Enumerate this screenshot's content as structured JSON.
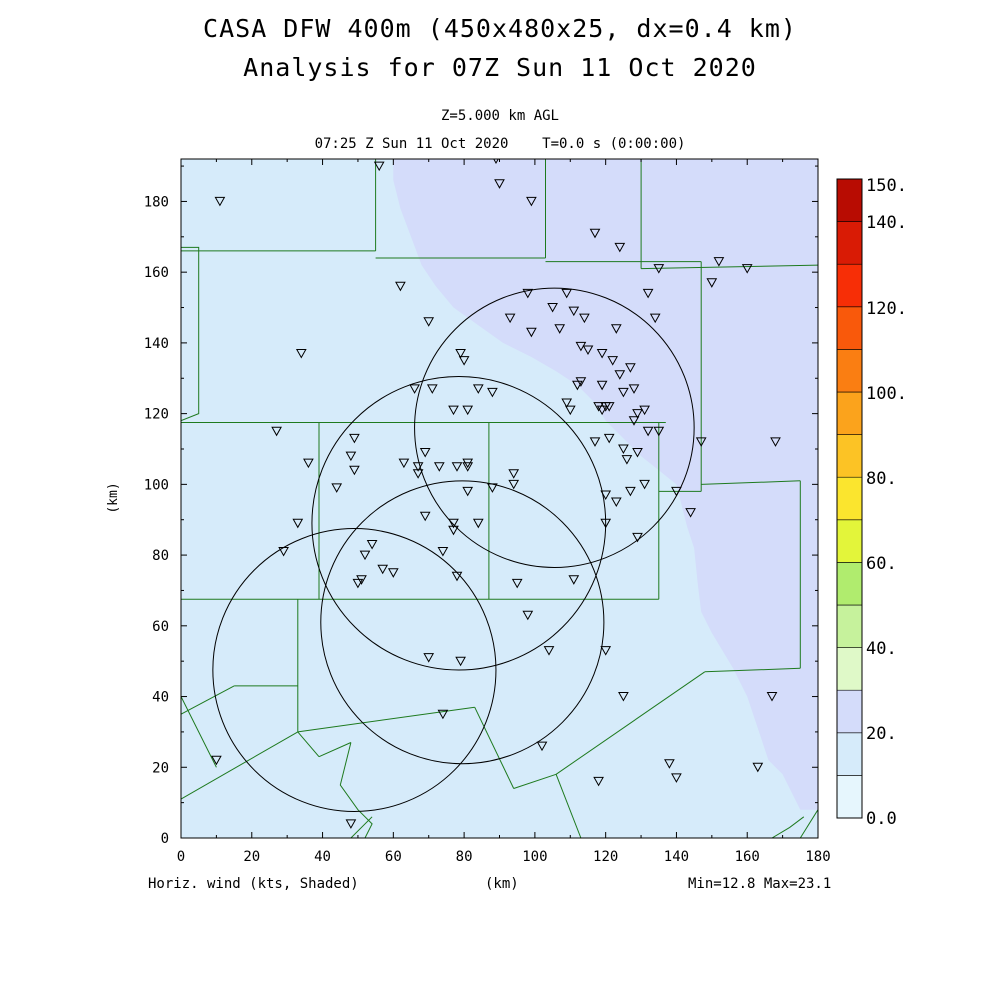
{
  "title_line1": "CASA DFW 400m (450x480x25, dx=0.4 km)",
  "title_line2": "Analysis for 07Z Sun 11 Oct 2020",
  "level_label": "Z=5.000 km AGL",
  "time_label": "07:25 Z Sun 11 Oct 2020    T=0.0 s (0:00:00)",
  "footer_left": "Horiz. wind (kts, Shaded)",
  "footer_center": "(km)",
  "footer_right": "Min=12.8 Max=23.1",
  "chart_data": {
    "type": "map",
    "xlabel": "(km)",
    "ylabel": "(km)",
    "xlim": [
      0,
      180
    ],
    "ylim": [
      0,
      192
    ],
    "x_ticks": [
      0,
      20,
      40,
      60,
      80,
      100,
      120,
      140,
      160,
      180
    ],
    "y_ticks": [
      0,
      20,
      40,
      60,
      80,
      100,
      120,
      140,
      160,
      180
    ],
    "shaded_field": "Horiz. wind (kts)",
    "field_min": 12.8,
    "field_max": 23.1,
    "colorbar": {
      "labels": [
        "0.0",
        "20.",
        "40.",
        "60.",
        "80.",
        "100.",
        "120.",
        "140.",
        "150."
      ],
      "bins": [
        {
          "lo": 0,
          "hi": 10,
          "color": "#e6f6fd"
        },
        {
          "lo": 10,
          "hi": 20,
          "color": "#d6ebfa"
        },
        {
          "lo": 20,
          "hi": 30,
          "color": "#d4dcfa"
        },
        {
          "lo": 30,
          "hi": 40,
          "color": "#dff9c8"
        },
        {
          "lo": 40,
          "hi": 50,
          "color": "#c6f29c"
        },
        {
          "lo": 50,
          "hi": 60,
          "color": "#b0ec6e"
        },
        {
          "lo": 60,
          "hi": 70,
          "color": "#e3f53a"
        },
        {
          "lo": 70,
          "hi": 80,
          "color": "#fbe52e"
        },
        {
          "lo": 80,
          "hi": 90,
          "color": "#fcc325"
        },
        {
          "lo": 90,
          "hi": 100,
          "color": "#fba31c"
        },
        {
          "lo": 100,
          "hi": 110,
          "color": "#fa7e12"
        },
        {
          "lo": 110,
          "hi": 120,
          "color": "#f9590b"
        },
        {
          "lo": 120,
          "hi": 130,
          "color": "#f72e06"
        },
        {
          "lo": 130,
          "hi": 140,
          "color": "#d91b05"
        },
        {
          "lo": 140,
          "hi": 150,
          "color": "#b80c02"
        }
      ]
    },
    "field_regions": [
      {
        "level": "20-30",
        "color": "#d4dcfa",
        "points": [
          [
            60,
            192
          ],
          [
            180,
            192
          ],
          [
            180,
            8
          ],
          [
            175,
            8
          ],
          [
            170,
            18
          ],
          [
            166,
            22
          ],
          [
            160,
            40
          ],
          [
            156,
            48
          ],
          [
            150,
            58
          ],
          [
            147,
            64
          ],
          [
            146,
            72
          ],
          [
            145,
            82
          ],
          [
            143,
            88
          ],
          [
            140,
            100
          ],
          [
            135,
            104
          ],
          [
            130,
            108
          ],
          [
            125,
            113
          ],
          [
            120,
            118
          ],
          [
            117,
            123
          ],
          [
            112,
            128
          ],
          [
            106,
            132
          ],
          [
            99,
            136
          ],
          [
            91,
            140
          ],
          [
            84,
            145
          ],
          [
            77,
            150
          ],
          [
            72,
            156
          ],
          [
            68,
            162
          ],
          [
            65,
            170
          ],
          [
            62,
            178
          ],
          [
            60,
            186
          ]
        ]
      }
    ],
    "radar_range_circles_km": [
      {
        "cx": 105.5,
        "cy": 116,
        "r": 39.5
      },
      {
        "cx": 78.5,
        "cy": 89,
        "r": 41.5
      },
      {
        "cx": 79.5,
        "cy": 61,
        "r": 40
      },
      {
        "cx": 49,
        "cy": 47.5,
        "r": 40
      }
    ],
    "county_lines": [
      [
        [
          0,
          117.5
        ],
        [
          137,
          117.5
        ]
      ],
      [
        [
          0,
          166
        ],
        [
          55,
          166
        ]
      ],
      [
        [
          55,
          192
        ],
        [
          55,
          166
        ]
      ],
      [
        [
          55,
          164
        ],
        [
          103,
          164
        ]
      ],
      [
        [
          103,
          192
        ],
        [
          103,
          164
        ]
      ],
      [
        [
          103,
          163
        ],
        [
          147,
          163
        ]
      ],
      [
        [
          147,
          163
        ],
        [
          147,
          98
        ]
      ],
      [
        [
          130,
          192
        ],
        [
          130,
          161
        ]
      ],
      [
        [
          130,
          161
        ],
        [
          180,
          162
        ]
      ],
      [
        [
          39,
          117.5
        ],
        [
          39,
          67.5
        ]
      ],
      [
        [
          0,
          67.5
        ],
        [
          135,
          67.5
        ]
      ],
      [
        [
          87,
          117.5
        ],
        [
          87,
          67.5
        ]
      ],
      [
        [
          135,
          117.5
        ],
        [
          135,
          67.5
        ]
      ],
      [
        [
          135,
          98
        ],
        [
          147,
          98
        ]
      ],
      [
        [
          147,
          100
        ],
        [
          175,
          101
        ]
      ],
      [
        [
          175,
          101
        ],
        [
          175,
          48
        ]
      ],
      [
        [
          148,
          47
        ],
        [
          175,
          48
        ]
      ],
      [
        [
          33,
          67.5
        ],
        [
          33,
          30
        ]
      ],
      [
        [
          33,
          30
        ],
        [
          83,
          37
        ]
      ],
      [
        [
          15,
          43
        ],
        [
          33,
          43
        ]
      ],
      [
        [
          0,
          35
        ],
        [
          15,
          43
        ]
      ],
      [
        [
          0,
          11
        ],
        [
          33,
          30
        ]
      ],
      [
        [
          33,
          30
        ],
        [
          39,
          23
        ]
      ],
      [
        [
          39,
          23
        ],
        [
          48,
          27
        ]
      ],
      [
        [
          83,
          37
        ],
        [
          94,
          14
        ]
      ],
      [
        [
          94,
          14
        ],
        [
          106,
          18
        ]
      ],
      [
        [
          106,
          18
        ],
        [
          113,
          0
        ]
      ],
      [
        [
          106,
          18
        ],
        [
          148,
          47
        ]
      ],
      [
        [
          0,
          40
        ],
        [
          10,
          20
        ]
      ],
      [
        [
          48,
          27
        ],
        [
          45,
          15
        ],
        [
          50,
          8
        ],
        [
          54,
          4
        ],
        [
          52,
          0
        ]
      ],
      [
        [
          176,
          6
        ],
        [
          172,
          3
        ],
        [
          167,
          0
        ]
      ],
      [
        [
          180,
          8
        ],
        [
          175,
          0
        ]
      ],
      [
        [
          48,
          0
        ],
        [
          54,
          6
        ]
      ],
      [
        [
          0,
          167
        ],
        [
          5,
          167
        ],
        [
          5,
          120
        ],
        [
          0,
          118
        ]
      ]
    ],
    "station_markers_km": [
      [
        11,
        180
      ],
      [
        56,
        190
      ],
      [
        89,
        192
      ],
      [
        90,
        185
      ],
      [
        99,
        180
      ],
      [
        117,
        171
      ],
      [
        124,
        167
      ],
      [
        135,
        161
      ],
      [
        152,
        163
      ],
      [
        160,
        161
      ],
      [
        150,
        157
      ],
      [
        62,
        156
      ],
      [
        98,
        154
      ],
      [
        109,
        154
      ],
      [
        111,
        149
      ],
      [
        105,
        150
      ],
      [
        99,
        143
      ],
      [
        114,
        147
      ],
      [
        107,
        144
      ],
      [
        93,
        147
      ],
      [
        70,
        146
      ],
      [
        123,
        144
      ],
      [
        113,
        139
      ],
      [
        115,
        138
      ],
      [
        119,
        137
      ],
      [
        122,
        135
      ],
      [
        34,
        137
      ],
      [
        79,
        137
      ],
      [
        80,
        135
      ],
      [
        127,
        133
      ],
      [
        124,
        131
      ],
      [
        134,
        147
      ],
      [
        132,
        154
      ],
      [
        113,
        129
      ],
      [
        112,
        128
      ],
      [
        119,
        128
      ],
      [
        66,
        127
      ],
      [
        71,
        127
      ],
      [
        84,
        127
      ],
      [
        88,
        126
      ],
      [
        125,
        126
      ],
      [
        128,
        127
      ],
      [
        77,
        121
      ],
      [
        81,
        121
      ],
      [
        109,
        123
      ],
      [
        110,
        121
      ],
      [
        118,
        122
      ],
      [
        119,
        121
      ],
      [
        120,
        122
      ],
      [
        121,
        122
      ],
      [
        129,
        120
      ],
      [
        131,
        121
      ],
      [
        128,
        118
      ],
      [
        132,
        115
      ],
      [
        135,
        115
      ],
      [
        27,
        115
      ],
      [
        49,
        113
      ],
      [
        117,
        112
      ],
      [
        121,
        113
      ],
      [
        125,
        110
      ],
      [
        147,
        112
      ],
      [
        168,
        112
      ],
      [
        69,
        109
      ],
      [
        48,
        108
      ],
      [
        126,
        107
      ],
      [
        129,
        109
      ],
      [
        36,
        106
      ],
      [
        63,
        106
      ],
      [
        67,
        105
      ],
      [
        73,
        105
      ],
      [
        78,
        105
      ],
      [
        81,
        106
      ],
      [
        81,
        105
      ],
      [
        67,
        103
      ],
      [
        49,
        104
      ],
      [
        94,
        103
      ],
      [
        44,
        99
      ],
      [
        88,
        99
      ],
      [
        94,
        100
      ],
      [
        81,
        98
      ],
      [
        140,
        98
      ],
      [
        131,
        100
      ],
      [
        127,
        98
      ],
      [
        120,
        97
      ],
      [
        33,
        89
      ],
      [
        69,
        91
      ],
      [
        77,
        89
      ],
      [
        77,
        87
      ],
      [
        84,
        89
      ],
      [
        123,
        95
      ],
      [
        144,
        92
      ],
      [
        120,
        89
      ],
      [
        129,
        85
      ],
      [
        54,
        83
      ],
      [
        29,
        81
      ],
      [
        52,
        80
      ],
      [
        74,
        81
      ],
      [
        60,
        75
      ],
      [
        57,
        76
      ],
      [
        51,
        73
      ],
      [
        50,
        72
      ],
      [
        78,
        74
      ],
      [
        95,
        72
      ],
      [
        111,
        73
      ],
      [
        98,
        63
      ],
      [
        70,
        51
      ],
      [
        79,
        50
      ],
      [
        104,
        53
      ],
      [
        120,
        53
      ],
      [
        125,
        40
      ],
      [
        167,
        40
      ],
      [
        74,
        35
      ],
      [
        102,
        26
      ],
      [
        10,
        22
      ],
      [
        138,
        21
      ],
      [
        140,
        17
      ],
      [
        118,
        16
      ],
      [
        163,
        20
      ],
      [
        48,
        4
      ]
    ]
  }
}
